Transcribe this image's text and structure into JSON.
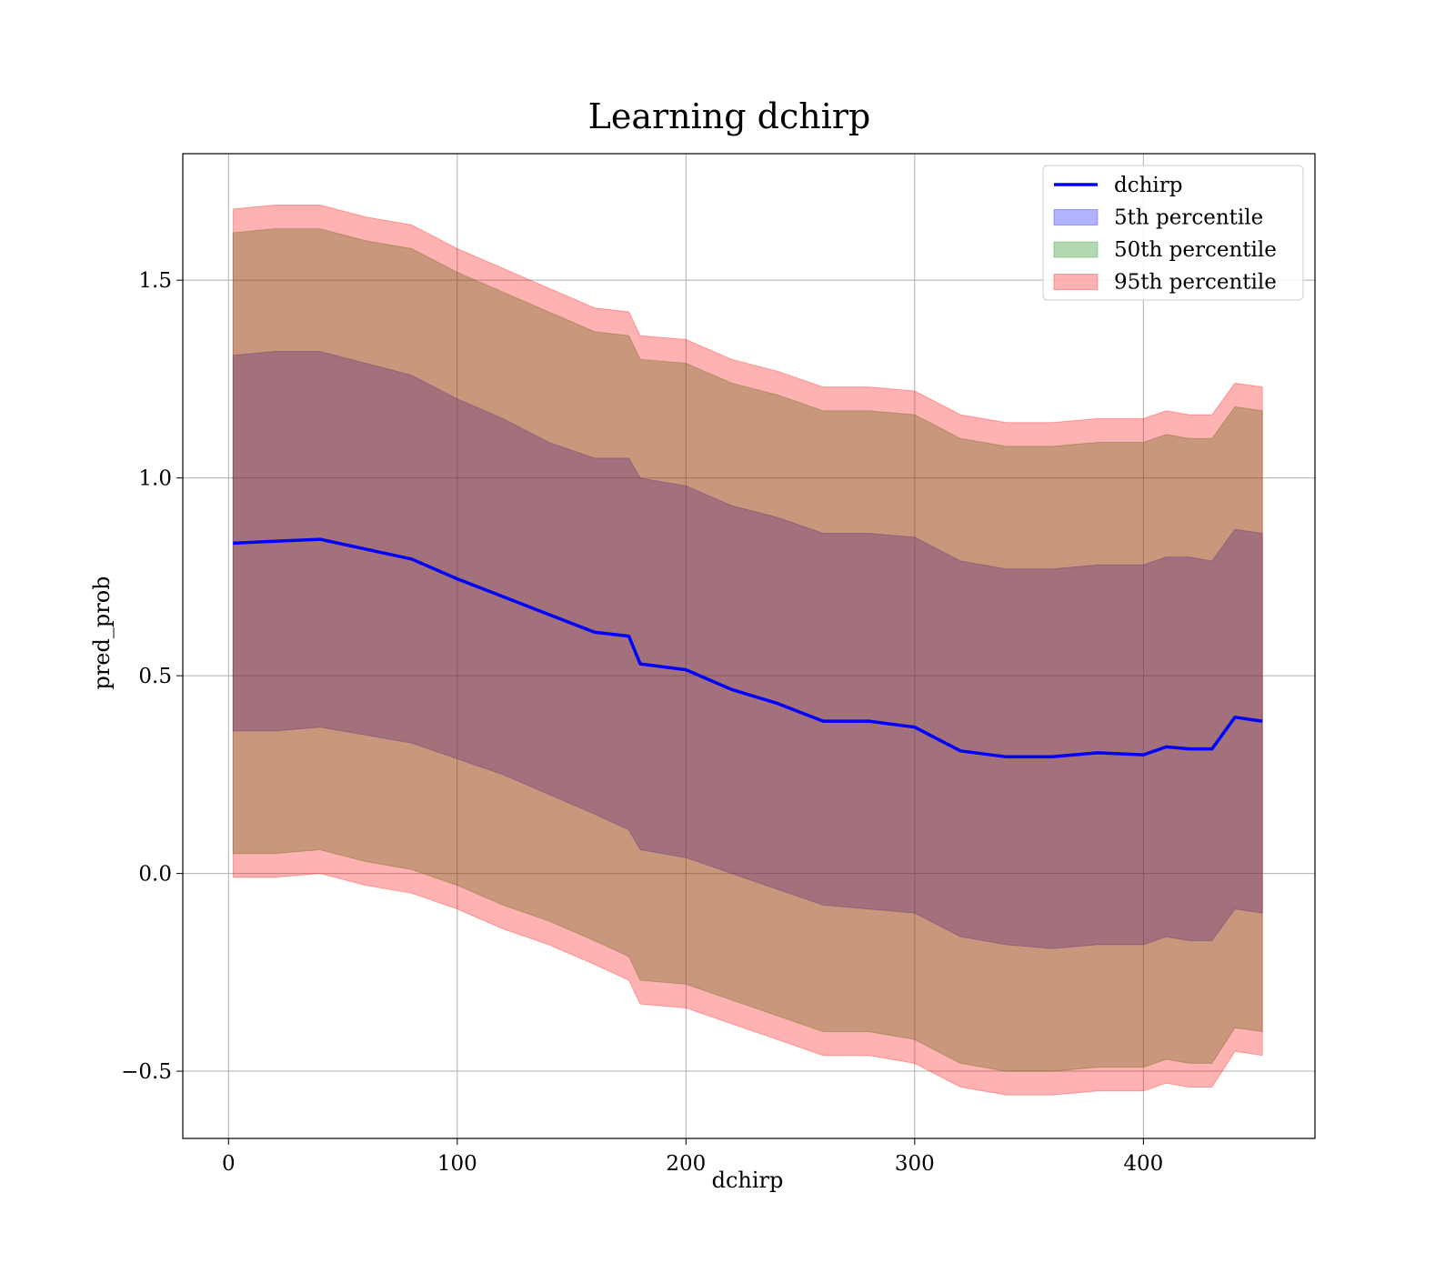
{
  "chart_data": {
    "type": "area",
    "title": "Learning dchirp",
    "xlabel": "dchirp",
    "ylabel": "pred_prob",
    "xlim": [
      -20,
      475
    ],
    "ylim": [
      -0.67,
      1.82
    ],
    "grid": true,
    "legend_position": "top-right",
    "xticks": [
      0,
      100,
      200,
      300,
      400
    ],
    "xtick_labels": [
      "0",
      "100",
      "200",
      "300",
      "400"
    ],
    "yticks": [
      -0.5,
      0.0,
      0.5,
      1.0,
      1.5
    ],
    "ytick_labels": [
      "−0.5",
      "0.0",
      "0.5",
      "1.0",
      "1.5"
    ],
    "x": [
      2,
      20,
      40,
      60,
      80,
      100,
      120,
      140,
      160,
      175,
      180,
      200,
      220,
      240,
      260,
      280,
      300,
      320,
      340,
      360,
      380,
      400,
      410,
      420,
      430,
      440,
      452
    ],
    "series": [
      {
        "name": "dchirp",
        "kind": "line",
        "color": "#0000ff",
        "values": [
          0.835,
          0.84,
          0.845,
          0.82,
          0.795,
          0.745,
          0.7,
          0.655,
          0.61,
          0.6,
          0.53,
          0.515,
          0.465,
          0.43,
          0.385,
          0.385,
          0.37,
          0.31,
          0.295,
          0.295,
          0.305,
          0.3,
          0.32,
          0.315,
          0.315,
          0.395,
          0.385
        ]
      },
      {
        "name": "5th percentile",
        "kind": "band",
        "color": "#0000ff",
        "upper": [
          1.31,
          1.32,
          1.32,
          1.29,
          1.26,
          1.2,
          1.15,
          1.09,
          1.05,
          1.05,
          1.0,
          0.98,
          0.93,
          0.9,
          0.86,
          0.86,
          0.85,
          0.79,
          0.77,
          0.77,
          0.78,
          0.78,
          0.8,
          0.8,
          0.79,
          0.87,
          0.86
        ],
        "lower": [
          0.36,
          0.36,
          0.37,
          0.35,
          0.33,
          0.29,
          0.25,
          0.2,
          0.15,
          0.11,
          0.06,
          0.04,
          0.0,
          -0.04,
          -0.08,
          -0.09,
          -0.1,
          -0.16,
          -0.18,
          -0.19,
          -0.18,
          -0.18,
          -0.16,
          -0.17,
          -0.17,
          -0.09,
          -0.1
        ]
      },
      {
        "name": "50th percentile",
        "kind": "band",
        "color": "#008000",
        "upper": [
          1.62,
          1.63,
          1.63,
          1.6,
          1.58,
          1.52,
          1.47,
          1.42,
          1.37,
          1.36,
          1.3,
          1.29,
          1.24,
          1.21,
          1.17,
          1.17,
          1.16,
          1.1,
          1.08,
          1.08,
          1.09,
          1.09,
          1.11,
          1.1,
          1.1,
          1.18,
          1.17
        ],
        "lower": [
          0.05,
          0.05,
          0.06,
          0.03,
          0.01,
          -0.03,
          -0.08,
          -0.12,
          -0.17,
          -0.21,
          -0.27,
          -0.28,
          -0.32,
          -0.36,
          -0.4,
          -0.4,
          -0.42,
          -0.48,
          -0.5,
          -0.5,
          -0.49,
          -0.49,
          -0.47,
          -0.48,
          -0.48,
          -0.39,
          -0.4
        ]
      },
      {
        "name": "95th percentile",
        "kind": "band",
        "color": "#ff0000",
        "upper": [
          1.68,
          1.69,
          1.69,
          1.66,
          1.64,
          1.58,
          1.53,
          1.48,
          1.43,
          1.42,
          1.36,
          1.35,
          1.3,
          1.27,
          1.23,
          1.23,
          1.22,
          1.16,
          1.14,
          1.14,
          1.15,
          1.15,
          1.17,
          1.16,
          1.16,
          1.24,
          1.23
        ],
        "lower": [
          -0.01,
          -0.01,
          0.0,
          -0.03,
          -0.05,
          -0.09,
          -0.14,
          -0.18,
          -0.23,
          -0.27,
          -0.33,
          -0.34,
          -0.38,
          -0.42,
          -0.46,
          -0.46,
          -0.48,
          -0.54,
          -0.56,
          -0.56,
          -0.55,
          -0.55,
          -0.53,
          -0.54,
          -0.54,
          -0.45,
          -0.46
        ]
      }
    ]
  }
}
